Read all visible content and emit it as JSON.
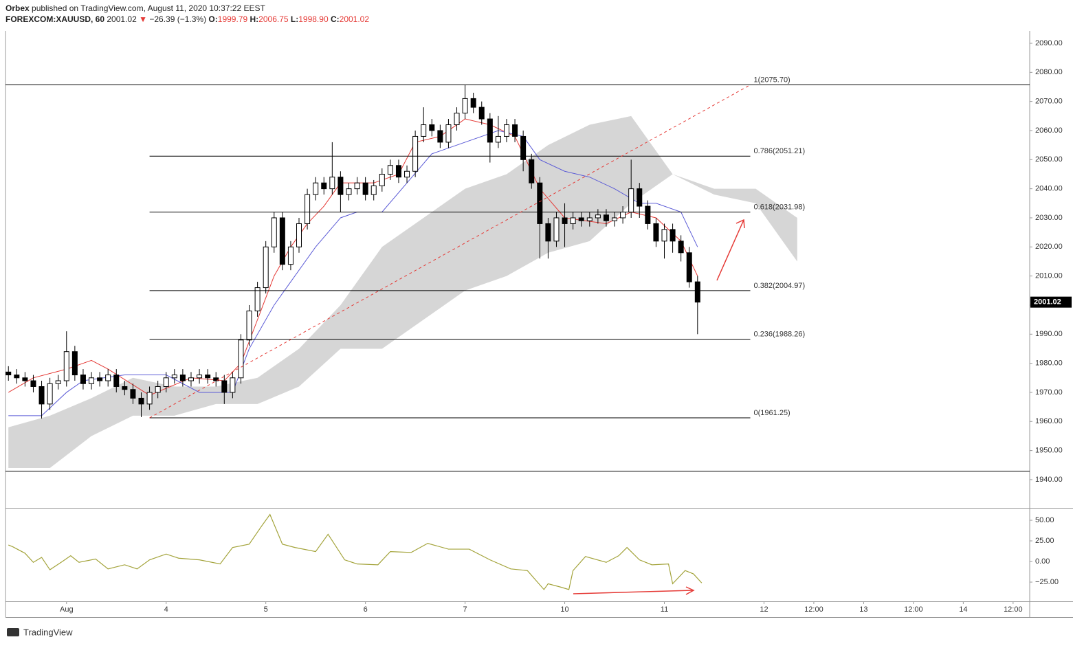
{
  "header": {
    "publisher": "Orbex",
    "published": "published on TradingView.com, August 11, 2020 10:37:22 EEST",
    "symbol": "FOREXCOM:XAUUSD, 60",
    "last": "2001.02",
    "arrow": "▼",
    "change": "−26.39 (−1.3%)",
    "o_label": "O:",
    "o": "1999.79",
    "h_label": "H:",
    "h": "2006.75",
    "l_label": "L:",
    "l": "1998.90",
    "c_label": "C:",
    "c": "2001.02"
  },
  "footer": {
    "brand": "TradingView"
  },
  "chart_data": [
    {
      "type": "candlestick",
      "xlim": [
        -14.7,
        232
      ],
      "xticks": [
        {
          "value": 0,
          "label": "Aug"
        },
        {
          "value": 24,
          "label": "4"
        },
        {
          "value": 48,
          "label": "5"
        },
        {
          "value": 72,
          "label": "6"
        },
        {
          "value": 96,
          "label": "7"
        },
        {
          "value": 120,
          "label": "10"
        },
        {
          "value": 144,
          "label": "11"
        },
        {
          "value": 168,
          "label": "12"
        },
        {
          "value": 180,
          "label": "12:00"
        },
        {
          "value": 192,
          "label": "13"
        },
        {
          "value": 204,
          "label": "12:00"
        },
        {
          "value": 216,
          "label": "14"
        },
        {
          "value": 228,
          "label": "12:00"
        }
      ],
      "ylim": [
        1930.3,
        2094.25
      ],
      "yticks": [
        {
          "value": 1940,
          "label": "1940.00"
        },
        {
          "value": 1950,
          "label": "1950.00"
        },
        {
          "value": 1960,
          "label": "1960.00"
        },
        {
          "value": 1970,
          "label": "1970.00"
        },
        {
          "value": 1980,
          "label": "1980.00"
        },
        {
          "value": 1990,
          "label": "1990.00"
        },
        {
          "value": 2000,
          "label": "2000.00"
        },
        {
          "value": 2010,
          "label": "2010.00"
        },
        {
          "value": 2020,
          "label": "2020.00"
        },
        {
          "value": 2030,
          "label": "2030.00"
        },
        {
          "value": 2040,
          "label": "2040.00"
        },
        {
          "value": 2050,
          "label": "2050.00"
        },
        {
          "value": 2060,
          "label": "2060.00"
        },
        {
          "value": 2070,
          "label": "2070.00"
        },
        {
          "value": 2080,
          "label": "2080.00"
        },
        {
          "value": 2090,
          "label": "2090.00"
        }
      ],
      "last_price": {
        "value": 2001.02,
        "label": "2001.02"
      },
      "candles": {
        "x": [
          -14,
          -12,
          -10,
          -8,
          -6,
          -4,
          -2,
          0,
          2,
          4,
          6,
          8,
          10,
          12,
          14,
          16,
          18,
          20,
          22,
          24,
          26,
          28,
          30,
          32,
          34,
          36,
          38,
          40,
          42,
          44,
          46,
          48,
          50,
          52,
          54,
          56,
          58,
          60,
          62,
          64,
          66,
          68,
          70,
          72,
          74,
          76,
          78,
          80,
          82,
          84,
          86,
          88,
          90,
          92,
          94,
          96,
          98,
          100,
          102,
          104,
          106,
          108,
          110,
          112,
          114,
          116,
          118,
          120,
          122,
          124,
          126,
          128,
          130,
          132,
          134,
          136,
          138,
          140,
          142,
          144,
          146,
          148,
          150,
          152
        ],
        "open": [
          1977,
          1976,
          1975,
          1974,
          1972,
          1966,
          1973,
          1974,
          1984,
          1976,
          1973,
          1975,
          1974,
          1976,
          1972,
          1971,
          1968,
          1966,
          1970,
          1972,
          1975,
          1976,
          1974,
          1975,
          1976,
          1975,
          1974,
          1970,
          1975,
          1988,
          1998,
          2006,
          2020,
          2030,
          2014,
          2020,
          2028,
          2038,
          2042,
          2040,
          2044,
          2038,
          2040,
          2042,
          2038,
          2041,
          2045,
          2048,
          2044,
          2046,
          2058,
          2062,
          2060,
          2056,
          2062,
          2066,
          2071,
          2068,
          2064,
          2056,
          2058,
          2062,
          2058,
          2050,
          2042,
          2028,
          2022,
          2030,
          2028,
          2030,
          2029,
          2030,
          2031,
          2029,
          2030,
          2032,
          2040,
          2034,
          2028,
          2022,
          2026,
          2022,
          2018,
          2008
        ],
        "high": [
          1979,
          1978,
          1977,
          1976,
          1974,
          1975,
          1976,
          1991,
          1986,
          1978,
          1977,
          1977,
          1978,
          1978,
          1974,
          1973,
          1970,
          1972,
          1974,
          1977,
          1978,
          1978,
          1977,
          1978,
          1978,
          1977,
          1976,
          1977,
          1990,
          2000,
          2008,
          2022,
          2032,
          2032,
          2022,
          2030,
          2040,
          2044,
          2044,
          2056,
          2046,
          2042,
          2044,
          2044,
          2043,
          2047,
          2050,
          2050,
          2048,
          2060,
          2068,
          2064,
          2062,
          2064,
          2068,
          2075.7,
          2073,
          2070,
          2066,
          2065,
          2064,
          2064,
          2060,
          2052,
          2044,
          2030,
          2032,
          2035,
          2032,
          2032,
          2032,
          2033,
          2033,
          2032,
          2034,
          2050,
          2042,
          2036,
          2030,
          2028,
          2028,
          2024,
          2020,
          2010
        ],
        "low": [
          1974,
          1973,
          1972,
          1970,
          1961,
          1964,
          1971,
          1972,
          1974,
          1971,
          1971,
          1972,
          1972,
          1970,
          1969,
          1966,
          1961.5,
          1964,
          1968,
          1970,
          1973,
          1972,
          1972,
          1973,
          1973,
          1972,
          1966,
          1968,
          1973,
          1986,
          1996,
          2004,
          2018,
          2012,
          2012,
          2018,
          2026,
          2036,
          2038,
          2038,
          2032,
          2036,
          2038,
          2036,
          2036,
          2039,
          2043,
          2042,
          2042,
          2044,
          2056,
          2058,
          2054,
          2054,
          2060,
          2064,
          2066,
          2062,
          2049,
          2054,
          2056,
          2056,
          2046,
          2040,
          2016,
          2016,
          2020,
          2020,
          2026,
          2027,
          2027,
          2028,
          2027,
          2027,
          2028,
          2030,
          2030,
          2026,
          2020,
          2016,
          2018,
          2015,
          2006,
          1990
        ],
        "close": [
          1976,
          1975,
          1974,
          1972,
          1966,
          1973,
          1974,
          1984,
          1976,
          1973,
          1975,
          1974,
          1976,
          1972,
          1971,
          1968,
          1966,
          1970,
          1972,
          1975,
          1976,
          1974,
          1975,
          1976,
          1975,
          1974,
          1970,
          1975,
          1988,
          1998,
          2006,
          2020,
          2030,
          2014,
          2020,
          2028,
          2038,
          2042,
          2040,
          2044,
          2038,
          2040,
          2042,
          2038,
          2041,
          2045,
          2048,
          2044,
          2046,
          2058,
          2062,
          2060,
          2056,
          2062,
          2066,
          2071,
          2068,
          2064,
          2056,
          2058,
          2062,
          2058,
          2050,
          2042,
          2028,
          2022,
          2030,
          2028,
          2030,
          2029,
          2030,
          2031,
          2029,
          2030,
          2032,
          2040,
          2034,
          2028,
          2022,
          2026,
          2022,
          2018,
          2008,
          2001.02
        ]
      },
      "cloud": {
        "color": "#d6d6d6",
        "x": [
          -14,
          -4,
          6,
          16,
          26,
          36,
          46,
          56,
          66,
          76,
          86,
          96,
          106,
          116,
          126,
          136,
          146,
          156,
          166,
          176
        ],
        "upper": [
          1958,
          1962,
          1968,
          1975,
          1972,
          1972,
          1975,
          1985,
          2000,
          2020,
          2030,
          2040,
          2045,
          2055,
          2062,
          2065,
          2045,
          2040,
          2040,
          2030
        ],
        "lower": [
          1944,
          1944,
          1955,
          1962,
          1962,
          1966,
          1966,
          1972,
          1985,
          1985,
          1995,
          2005,
          2010,
          2018,
          2022,
          2035,
          2045,
          2038,
          2035,
          2015
        ]
      },
      "series": [
        {
          "color": "#e53935",
          "x": [
            -14,
            -8,
            0,
            6,
            10,
            20,
            30,
            38,
            42,
            46,
            50,
            54,
            58,
            62,
            66,
            74,
            80,
            84,
            90,
            96,
            102,
            108,
            114,
            120,
            130,
            136,
            142,
            148,
            152
          ],
          "values": [
            1970,
            1975,
            1978,
            1981,
            1978,
            1969,
            1975,
            1974,
            1980,
            1995,
            2010,
            2020,
            2028,
            2034,
            2042,
            2042,
            2045,
            2056,
            2058,
            2064,
            2062,
            2058,
            2040,
            2030,
            2028,
            2032,
            2030,
            2022,
            2010
          ]
        },
        {
          "color": "#5b5bd6",
          "x": [
            -14,
            -6,
            0,
            4,
            14,
            24,
            32,
            40,
            44,
            50,
            54,
            60,
            66,
            70,
            76,
            82,
            88,
            96,
            104,
            110,
            114,
            120,
            126,
            132,
            138,
            142,
            148,
            152
          ],
          "values": [
            1962,
            1962,
            1970,
            1974,
            1976,
            1976,
            1970,
            1970,
            1985,
            2000,
            2008,
            2020,
            2030,
            2032,
            2032,
            2042,
            2052,
            2056,
            2060,
            2058,
            2050,
            2046,
            2044,
            2040,
            2035,
            2035,
            2032,
            2020
          ]
        }
      ],
      "fib": {
        "x": [
          20,
          164.7
        ],
        "levels": [
          {
            "value": 2075.7,
            "label": "1(2075.70)"
          },
          {
            "value": 2051.21,
            "label": "0.786(2051.21)"
          },
          {
            "value": 2031.98,
            "label": "0.618(2031.98)"
          },
          {
            "value": 2004.97,
            "label": "0.382(2004.97)"
          },
          {
            "value": 1988.26,
            "label": "0.236(1988.26)"
          },
          {
            "value": 1961.25,
            "label": "0(1961.25)"
          }
        ]
      },
      "trend_line": {
        "x": [
          20,
          164.7
        ],
        "y": [
          1961.25,
          2075.7
        ],
        "color": "#e53935"
      },
      "hlines": [
        2075.7,
        1942.9
      ]
    },
    {
      "type": "line",
      "xlim": [
        -14.7,
        232
      ],
      "ylim": [
        -48.3,
        64.2
      ],
      "yticks": [
        {
          "value": 50,
          "label": "50.00"
        },
        {
          "value": 25,
          "label": "25.00"
        },
        {
          "value": 0,
          "label": "0.00"
        },
        {
          "value": -25,
          "label": "−25.00"
        }
      ],
      "color": "#a3a33a",
      "x": [
        -14,
        -13,
        -10,
        -8,
        -6,
        -4,
        -1,
        1,
        3,
        7,
        10,
        14,
        17,
        20,
        24,
        27,
        32,
        37,
        40,
        44,
        47,
        49,
        52,
        55,
        60,
        63,
        67,
        70,
        75,
        78,
        83,
        87,
        92,
        97,
        102,
        107,
        111,
        115,
        116,
        119,
        121,
        122,
        125,
        130,
        133,
        135,
        138,
        141,
        145,
        146,
        149,
        151,
        153
      ],
      "values": [
        20,
        18,
        10,
        -1,
        5,
        -10,
        0,
        7,
        -1,
        3,
        -9,
        -4,
        -9,
        2,
        9,
        4,
        2,
        -3,
        17,
        21,
        43,
        57,
        21,
        17,
        12,
        33,
        2,
        -3,
        -4,
        12,
        11,
        22,
        15,
        15,
        2,
        -9,
        -11,
        -34,
        -27,
        -31,
        -34,
        -11,
        6,
        -1,
        7,
        17,
        2,
        -4,
        -3,
        -27,
        -11,
        -15,
        -26
      ]
    }
  ]
}
